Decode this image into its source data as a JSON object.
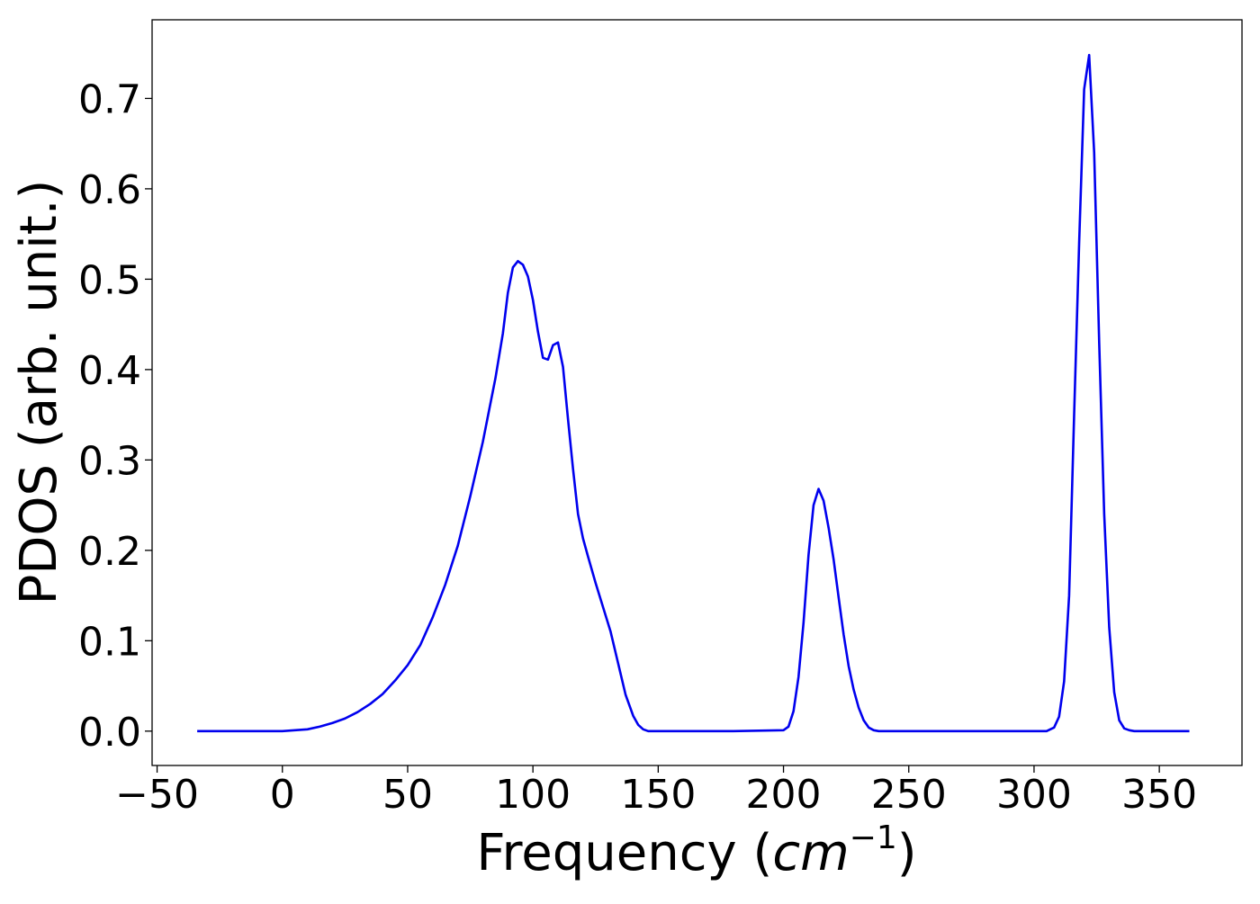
{
  "chart_data": {
    "type": "line",
    "title": "",
    "xlabel_main": "Frequency (",
    "xlabel_unit_base": "cm",
    "xlabel_unit_exp": "−1",
    "xlabel_close": ")",
    "ylabel": "PDOS (arb. unit.)",
    "xlim": [
      -52,
      383
    ],
    "ylim": [
      -0.038,
      0.787
    ],
    "x_ticks": [
      -50,
      0,
      50,
      100,
      150,
      200,
      250,
      300,
      350
    ],
    "x_tick_labels": [
      "−50",
      "0",
      "50",
      "100",
      "150",
      "200",
      "250",
      "300",
      "350"
    ],
    "y_ticks": [
      0.0,
      0.1,
      0.2,
      0.3,
      0.4,
      0.5,
      0.6,
      0.7
    ],
    "y_tick_labels": [
      "0.0",
      "0.1",
      "0.2",
      "0.3",
      "0.4",
      "0.5",
      "0.6",
      "0.7"
    ],
    "grid": false,
    "series": [
      {
        "color": "#0000ee",
        "x": [
          -34,
          -20,
          -10,
          0,
          5,
          10,
          15,
          20,
          25,
          30,
          35,
          40,
          45,
          50,
          55,
          60,
          65,
          70,
          75,
          80,
          85,
          88,
          90,
          92,
          94,
          96,
          98,
          100,
          102,
          104,
          106,
          108,
          110,
          112,
          114,
          116,
          118,
          120,
          122,
          125,
          128,
          131,
          134,
          137,
          140,
          142,
          144,
          146,
          150,
          160,
          180,
          200,
          202,
          204,
          206,
          208,
          210,
          212,
          214,
          216,
          218,
          220,
          222,
          224,
          226,
          228,
          230,
          232,
          234,
          236,
          238,
          240,
          250,
          280,
          305,
          308,
          310,
          312,
          314,
          316,
          318,
          320,
          322,
          324,
          326,
          328,
          330,
          332,
          334,
          336,
          338,
          340,
          350,
          362
        ],
        "y": [
          0.0,
          0.0,
          0.0,
          0.0,
          0.001,
          0.002,
          0.005,
          0.009,
          0.014,
          0.021,
          0.03,
          0.041,
          0.056,
          0.073,
          0.095,
          0.126,
          0.162,
          0.205,
          0.26,
          0.32,
          0.39,
          0.44,
          0.485,
          0.513,
          0.52,
          0.516,
          0.503,
          0.477,
          0.442,
          0.413,
          0.411,
          0.427,
          0.43,
          0.403,
          0.345,
          0.29,
          0.24,
          0.213,
          0.193,
          0.164,
          0.137,
          0.11,
          0.075,
          0.04,
          0.017,
          0.007,
          0.002,
          0.0,
          0.0,
          0.0,
          0.0,
          0.001,
          0.005,
          0.022,
          0.06,
          0.12,
          0.195,
          0.25,
          0.268,
          0.255,
          0.225,
          0.19,
          0.148,
          0.107,
          0.072,
          0.046,
          0.026,
          0.012,
          0.004,
          0.001,
          0.0,
          0.0,
          0.0,
          0.0,
          0.0,
          0.004,
          0.016,
          0.055,
          0.15,
          0.35,
          0.54,
          0.71,
          0.748,
          0.64,
          0.43,
          0.24,
          0.115,
          0.043,
          0.012,
          0.003,
          0.001,
          0.0,
          0.0,
          0.0
        ]
      }
    ]
  }
}
